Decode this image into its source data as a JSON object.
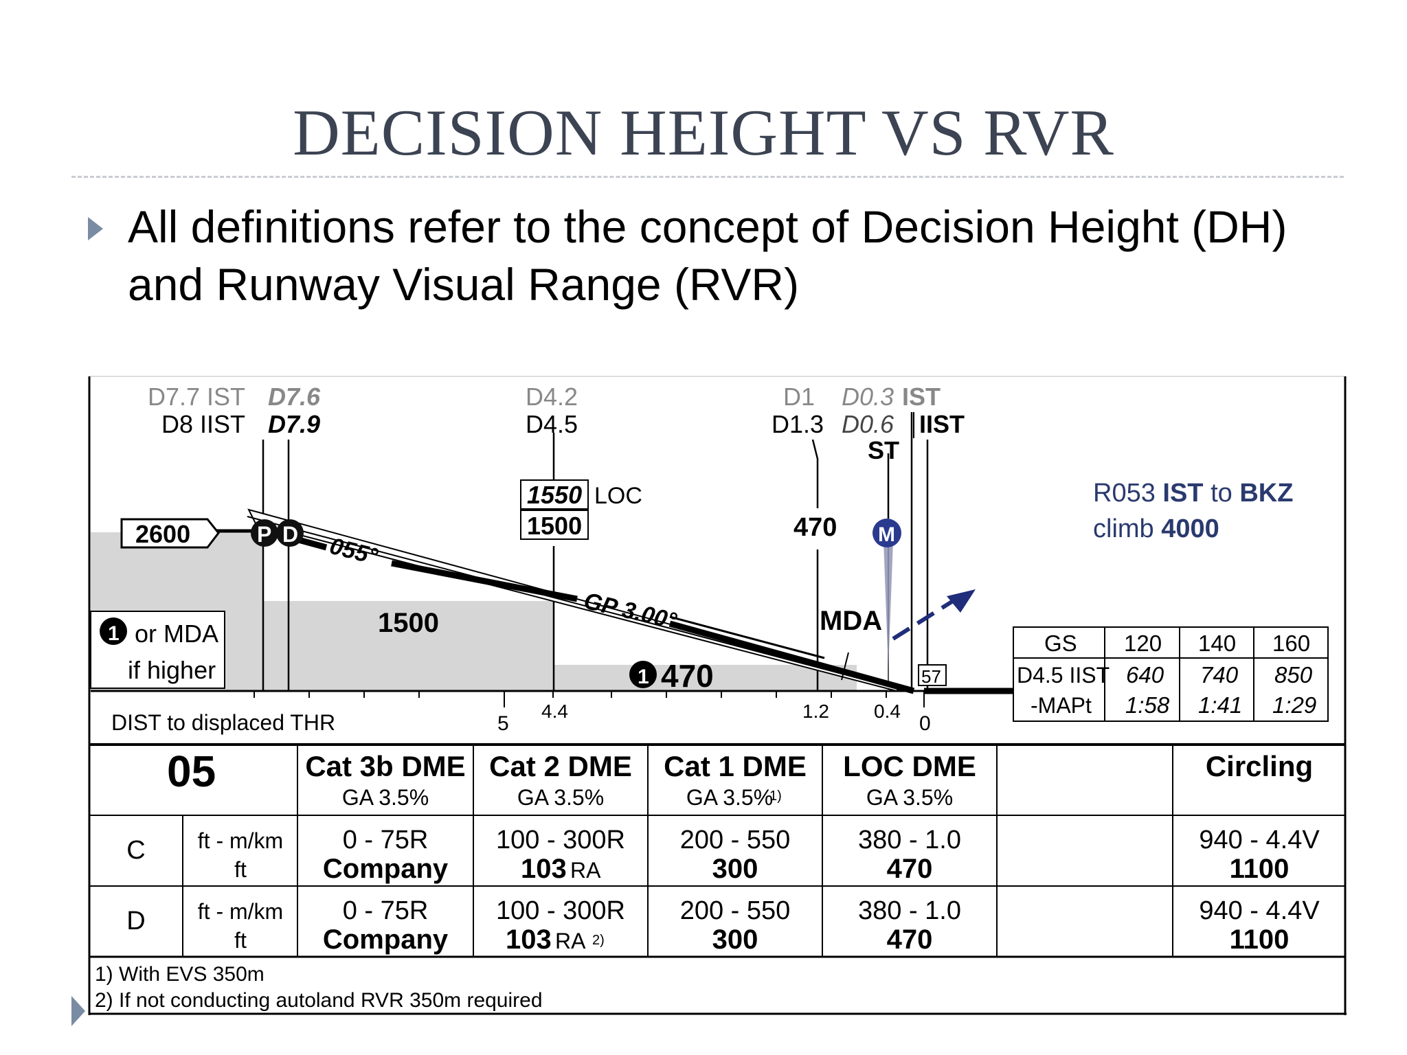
{
  "slide": {
    "title": "DECISION HEIGHT VS RVR",
    "bullet": "All definitions refer to the concept of Decision Height (DH) and Runway Visual Range (RVR)"
  },
  "profile": {
    "fixes": {
      "d77": "D7.7 IST",
      "d8": "D8 IIST",
      "d76": "D7.6",
      "d79": "D7.9",
      "d42": "D4.2",
      "d45": "D4.5",
      "d1": "D1",
      "d13": "D1.3",
      "d03": "D0.3",
      "ist": "IST",
      "d06": "D0.6",
      "iist": "IIST",
      "st": "ST"
    },
    "altitudes": {
      "start": "2600",
      "loc_alt": "1550",
      "loc_label": "LOC",
      "gs_alt": "1500",
      "seg_alt": "1500",
      "mda_alt": "470",
      "min_alt": "470",
      "mda_label": "MDA",
      "tdze": "57"
    },
    "markers": {
      "p": "P",
      "d": "D",
      "m": "M",
      "note_num": "1"
    },
    "track": "055°",
    "glidepath": "GP 3.00°",
    "note_box": {
      "line1": "or MDA",
      "line2": "if higher"
    },
    "missed": {
      "line1_a": "R053 ",
      "line1_b": "IST",
      "line1_c": " to ",
      "line1_d": "BKZ",
      "line2_a": "climb ",
      "line2_b": "4000"
    },
    "dist": {
      "label": "DIST to displaced THR",
      "ticks": [
        "5",
        "4.4",
        "1.2",
        "0.4",
        "0"
      ]
    },
    "gs_table": {
      "headers": [
        "GS",
        "120",
        "140",
        "160"
      ],
      "row_label_1": "D4.5 IIST",
      "row_label_2": "-MAPt",
      "dist_values": [
        "640",
        "740",
        "850"
      ],
      "times": [
        "1:58",
        "1:41",
        "1:29"
      ]
    }
  },
  "minima": {
    "runway": "05",
    "columns": [
      {
        "title": "Cat 3b DME",
        "sub": "GA 3.5%"
      },
      {
        "title": "Cat 2 DME",
        "sub": "GA 3.5%"
      },
      {
        "title": "Cat 1 DME",
        "sub": "GA 3.5%",
        "sup": "1)"
      },
      {
        "title": "LOC DME",
        "sub": "GA 3.5%"
      },
      {
        "title": "",
        "sub": ""
      },
      {
        "title": "Circling",
        "sub": ""
      }
    ],
    "rows": [
      {
        "cat": "C",
        "unit1": "ft - m/km",
        "unit2": "ft",
        "cells": [
          {
            "top": "0 - 75R",
            "bottom": "Company"
          },
          {
            "top": "100 - 300R",
            "bottom": "103",
            "suffix": "RA"
          },
          {
            "top": "200 - 550",
            "bottom": "300"
          },
          {
            "top": "380 - 1.0",
            "bottom": "470"
          },
          {
            "top": "",
            "bottom": ""
          },
          {
            "top": "940 - 4.4V",
            "bottom": "1100"
          }
        ]
      },
      {
        "cat": "D",
        "unit1": "ft - m/km",
        "unit2": "ft",
        "cells": [
          {
            "top": "0 - 75R",
            "bottom": "Company"
          },
          {
            "top": "100 - 300R",
            "bottom": "103",
            "suffix": "RA",
            "sup": "2)"
          },
          {
            "top": "200 - 550",
            "bottom": "300"
          },
          {
            "top": "380 - 1.0",
            "bottom": "470"
          },
          {
            "top": "",
            "bottom": ""
          },
          {
            "top": "940 - 4.4V",
            "bottom": "1100"
          }
        ]
      }
    ],
    "footnotes": [
      "1) With EVS 350m",
      "2) If not conducting autoland RVR 350m required"
    ]
  },
  "colors": {
    "title": "#3c4352",
    "bullet_arrow": "#7a8ca3",
    "shade": "#d6d6d6",
    "missed_text": "#2a3a6e",
    "missed_arrow": "#1f2d7a"
  }
}
